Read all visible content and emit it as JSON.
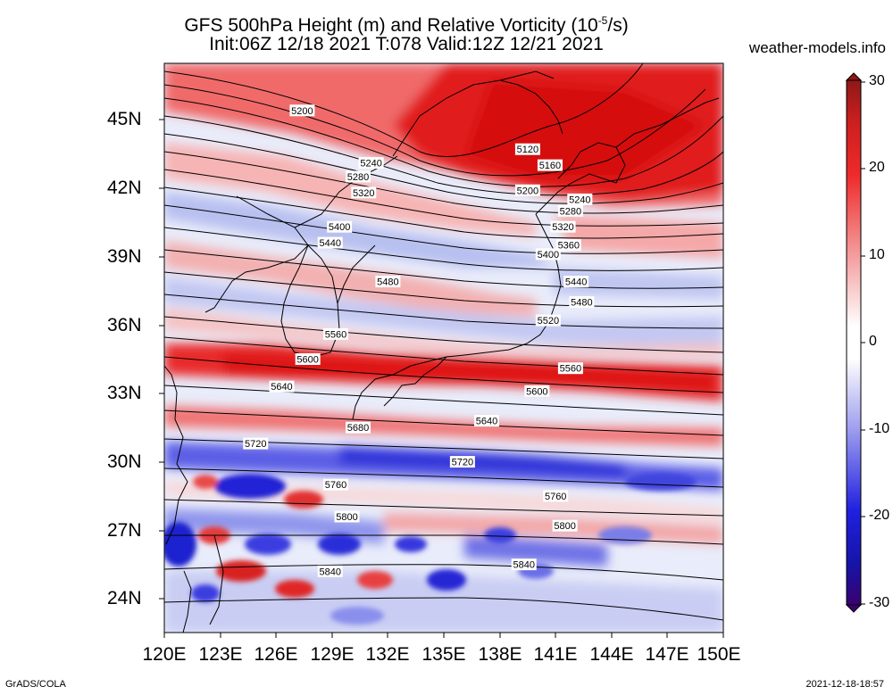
{
  "title_line1": "GFS 500hPa Height (m) and Relative Vorticity (10",
  "title_exp": "-5",
  "title_line1_end": "/s)",
  "title_line2": "Init:06Z 12/18 2021 T:078 Valid:12Z 12/21 2021",
  "site": "weather-models.info",
  "footer_left": "GrADS/COLA",
  "footer_right": "2021-12-18-18:57",
  "lat_ticks": [
    "45N",
    "42N",
    "39N",
    "36N",
    "33N",
    "30N",
    "27N",
    "24N"
  ],
  "lon_ticks": [
    "120E",
    "123E",
    "126E",
    "129E",
    "132E",
    "135E",
    "138E",
    "141E",
    "144E",
    "147E",
    "150E"
  ],
  "colorbar_ticks": [
    "30",
    "20",
    "10",
    "0",
    "-10",
    "-20",
    "-30"
  ],
  "colors": {
    "positive": "#e8161b",
    "negative": "#1a1ad8",
    "neutral": "#ffffff"
  },
  "contours": [
    {
      "label": "5120",
      "lon": 139.5,
      "lat": 43.7
    },
    {
      "label": "5160",
      "lon": 140.7,
      "lat": 43.0
    },
    {
      "label": "5200",
      "lon": 127.4,
      "lat": 45.4
    },
    {
      "label": "5200",
      "lon": 139.5,
      "lat": 41.9
    },
    {
      "label": "5240",
      "lon": 131.1,
      "lat": 43.1
    },
    {
      "label": "5240",
      "lon": 142.3,
      "lat": 41.5
    },
    {
      "label": "5280",
      "lon": 130.4,
      "lat": 42.5
    },
    {
      "label": "5280",
      "lon": 141.8,
      "lat": 41.0
    },
    {
      "label": "5320",
      "lon": 130.7,
      "lat": 41.8
    },
    {
      "label": "5320",
      "lon": 141.4,
      "lat": 40.3
    },
    {
      "label": "5360",
      "lon": 141.7,
      "lat": 39.5
    },
    {
      "label": "5400",
      "lon": 129.4,
      "lat": 40.3
    },
    {
      "label": "5400",
      "lon": 140.6,
      "lat": 39.1
    },
    {
      "label": "5440",
      "lon": 128.9,
      "lat": 39.6
    },
    {
      "label": "5440",
      "lon": 142.1,
      "lat": 37.9
    },
    {
      "label": "5480",
      "lon": 132.0,
      "lat": 37.9
    },
    {
      "label": "5480",
      "lon": 142.4,
      "lat": 37.0
    },
    {
      "label": "5520",
      "lon": 140.6,
      "lat": 36.2
    },
    {
      "label": "5560",
      "lon": 129.2,
      "lat": 35.6
    },
    {
      "label": "5560",
      "lon": 141.8,
      "lat": 34.1
    },
    {
      "label": "5600",
      "lon": 127.7,
      "lat": 34.5
    },
    {
      "label": "5600",
      "lon": 140.0,
      "lat": 33.1
    },
    {
      "label": "5640",
      "lon": 126.3,
      "lat": 33.3
    },
    {
      "label": "5640",
      "lon": 137.3,
      "lat": 31.8
    },
    {
      "label": "5680",
      "lon": 130.4,
      "lat": 31.5
    },
    {
      "label": "5720",
      "lon": 124.9,
      "lat": 30.8
    },
    {
      "label": "5720",
      "lon": 136.0,
      "lat": 30.0
    },
    {
      "label": "5760",
      "lon": 129.2,
      "lat": 29.0
    },
    {
      "label": "5760",
      "lon": 141.0,
      "lat": 28.5
    },
    {
      "label": "5800",
      "lon": 129.8,
      "lat": 27.6
    },
    {
      "label": "5800",
      "lon": 141.5,
      "lat": 27.2
    },
    {
      "label": "5840",
      "lon": 128.9,
      "lat": 25.2
    },
    {
      "label": "5840",
      "lon": 139.3,
      "lat": 25.5
    }
  ]
}
